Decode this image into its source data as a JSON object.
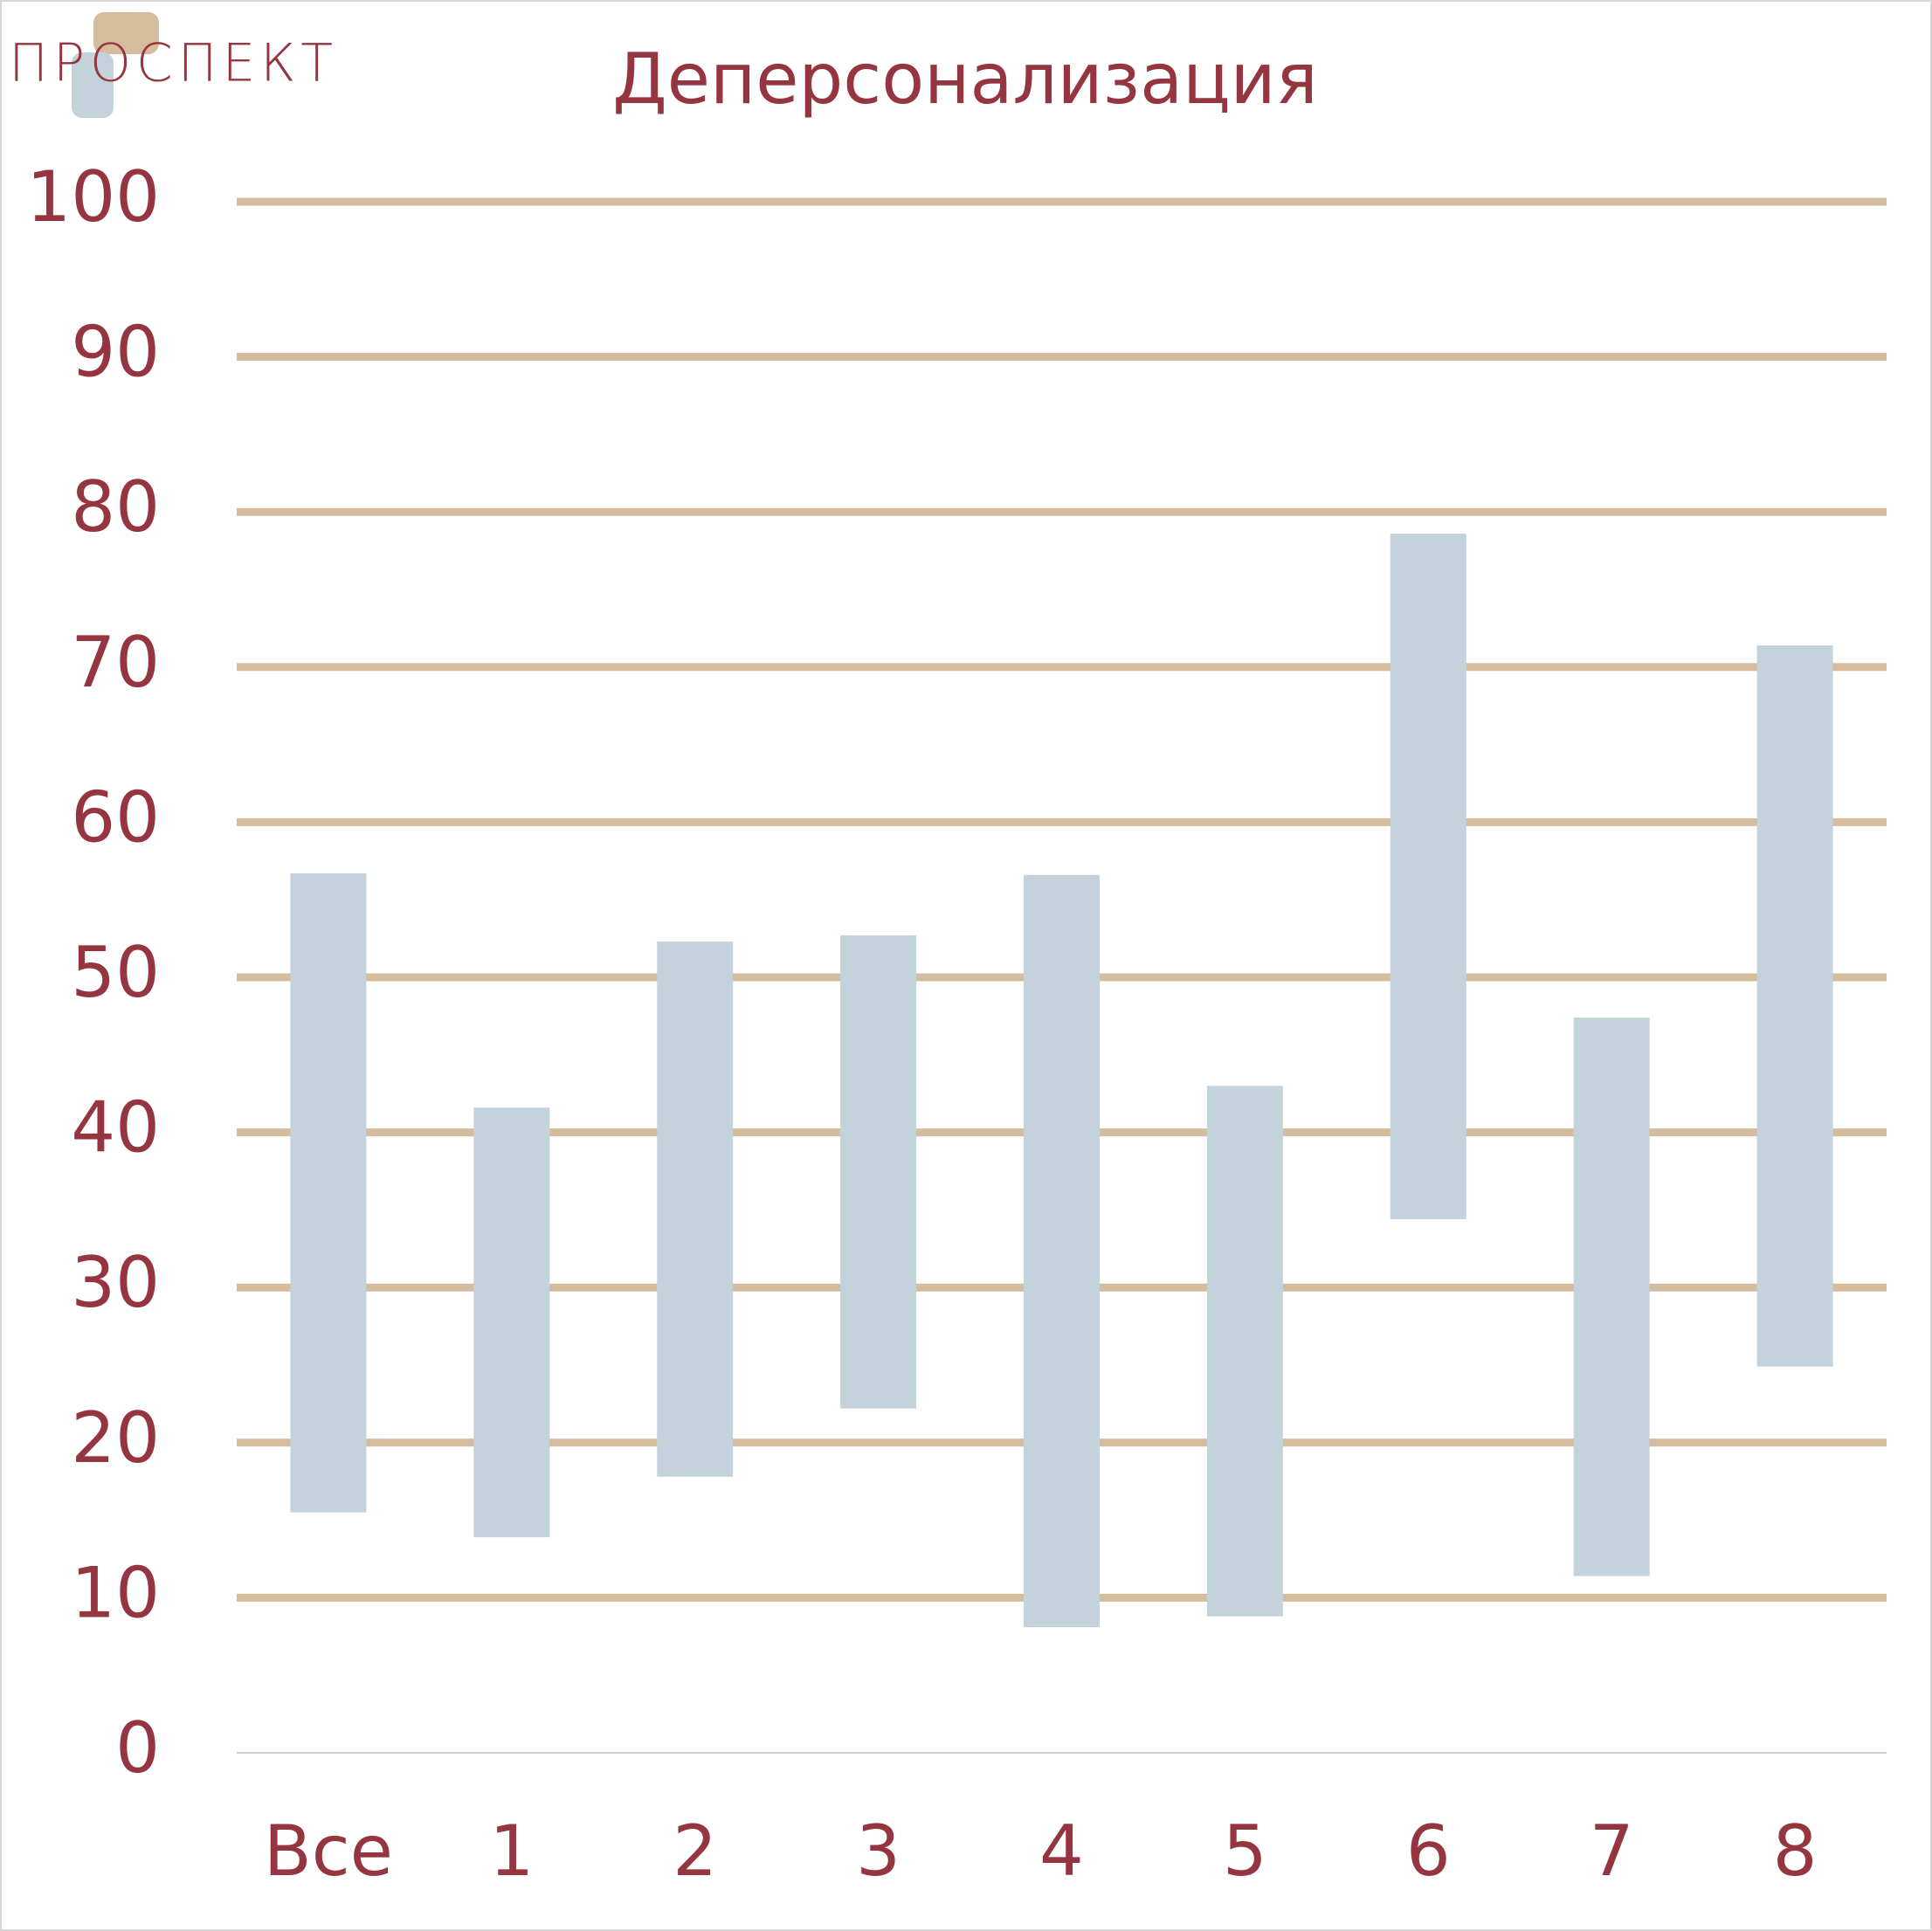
{
  "logo": "ПРОСПЕКТ",
  "chart_data": {
    "type": "floating_bar",
    "title": "Деперсонализация",
    "categories": [
      "Все",
      "1",
      "2",
      "3",
      "4",
      "5",
      "6",
      "7",
      "8"
    ],
    "series": [
      {
        "color": "#c4d2db",
        "low": [
          15.5,
          13.9,
          17.8,
          22.2,
          8.1,
          8.8,
          34.4,
          11.4,
          24.9
        ],
        "high": [
          56.7,
          41.6,
          52.3,
          52.7,
          56.6,
          43.0,
          78.6,
          47.4,
          71.4
        ]
      }
    ],
    "ylim": [
      0,
      100
    ],
    "yticks": [
      0,
      10,
      20,
      30,
      40,
      50,
      60,
      70,
      80,
      90,
      100
    ],
    "grid": true,
    "grid_color": "#d4bc9c"
  }
}
